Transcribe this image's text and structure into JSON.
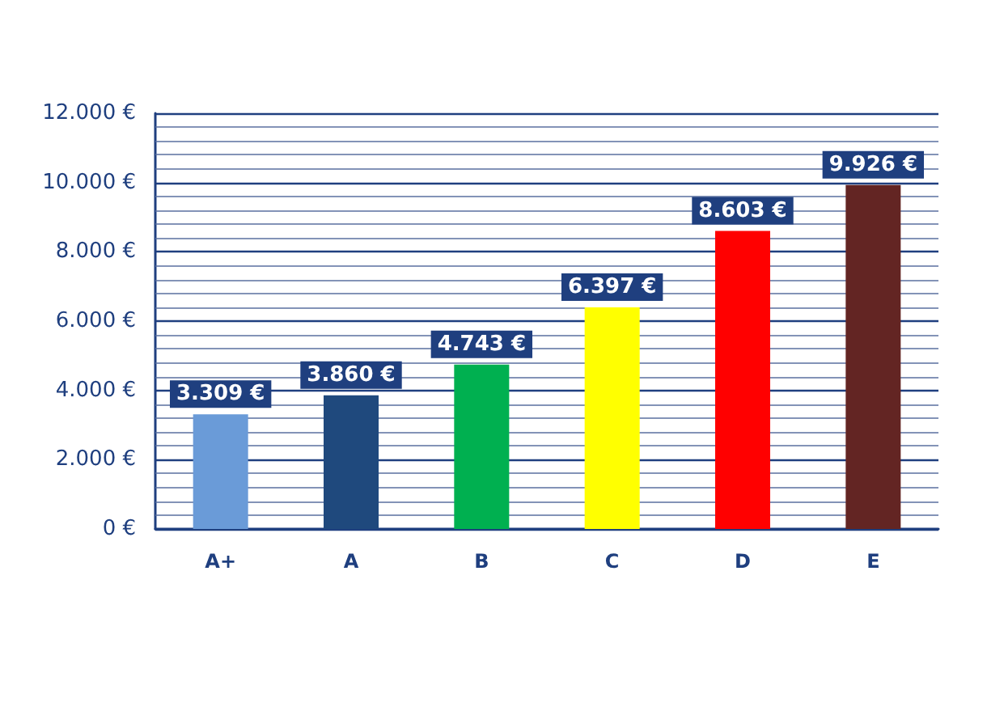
{
  "chart_data": {
    "type": "bar",
    "categories": [
      "A+",
      "A",
      "B",
      "C",
      "D",
      "E"
    ],
    "values": [
      3309,
      3860,
      4743,
      6397,
      8603,
      9926
    ],
    "colors": [
      "#6a9bd8",
      "#1f497d",
      "#00b050",
      "#ffff00",
      "#ff0000",
      "#632523"
    ],
    "value_labels": [
      "3.309 €",
      "3.860 €",
      "4.743 €",
      "6.397 €",
      "8.603 €",
      "9.926 €"
    ],
    "ylim": [
      0,
      12000
    ],
    "yticks": [
      {
        "value": 0,
        "label": "0 €"
      },
      {
        "value": 400,
        "label": null
      },
      {
        "value": 800,
        "label": null
      },
      {
        "value": 1200,
        "label": null
      },
      {
        "value": 1600,
        "label": null
      },
      {
        "value": 2000,
        "label": "2.000 €"
      },
      {
        "value": 2400,
        "label": null
      },
      {
        "value": 2800,
        "label": null
      },
      {
        "value": 3200,
        "label": null
      },
      {
        "value": 3600,
        "label": null
      },
      {
        "value": 4000,
        "label": "4.000 €"
      },
      {
        "value": 4400,
        "label": null
      },
      {
        "value": 4800,
        "label": null
      },
      {
        "value": 5200,
        "label": null
      },
      {
        "value": 5600,
        "label": null
      },
      {
        "value": 6000,
        "label": "6.000 €"
      },
      {
        "value": 6400,
        "label": null
      },
      {
        "value": 6800,
        "label": null
      },
      {
        "value": 7200,
        "label": null
      },
      {
        "value": 7600,
        "label": null
      },
      {
        "value": 8000,
        "label": "8.000 €"
      },
      {
        "value": 8400,
        "label": null
      },
      {
        "value": 8800,
        "label": null
      },
      {
        "value": 9200,
        "label": null
      },
      {
        "value": 9600,
        "label": null
      },
      {
        "value": 10000,
        "label": "10.000 €"
      },
      {
        "value": 10400,
        "label": null
      },
      {
        "value": 10800,
        "label": null
      },
      {
        "value": 11200,
        "label": null
      },
      {
        "value": 11600,
        "label": null
      },
      {
        "value": 12000,
        "label": "12.000 €"
      }
    ],
    "grid": "y"
  }
}
